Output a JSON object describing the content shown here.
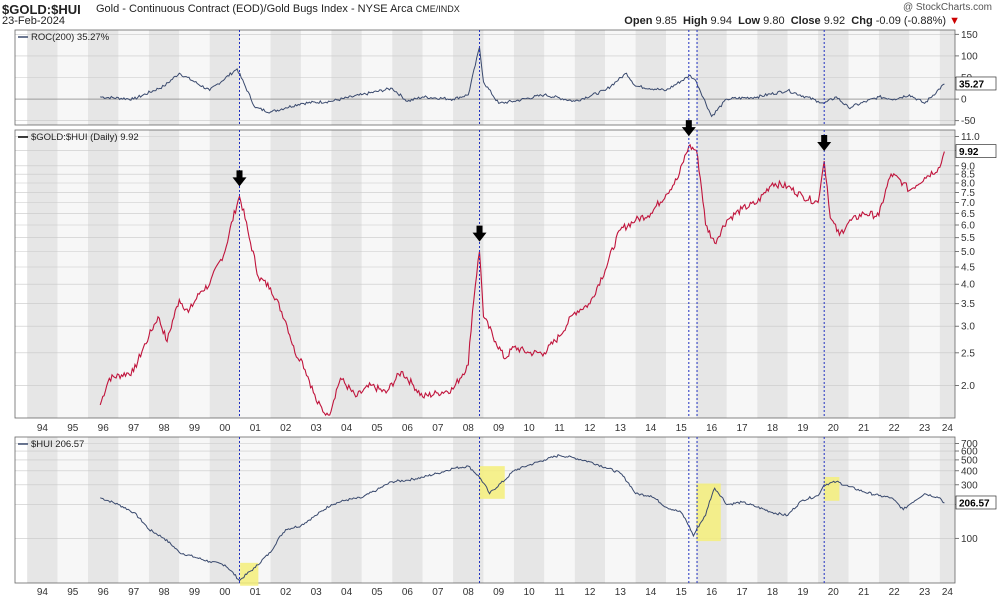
{
  "header": {
    "symbol": "$GOLD:$HUI",
    "description": "Gold - Continuous Contract (EOD)/Gold Bugs Index - NYSE Arca",
    "exchange": "CME/INDX",
    "date": "23-Feb-2024",
    "open_label": "Open",
    "open": "9.85",
    "high_label": "High",
    "high": "9.94",
    "low_label": "Low",
    "low": "9.80",
    "close_label": "Close",
    "close": "9.92",
    "chg_label": "Chg",
    "chg": "-0.09 (-0.88%)",
    "chg_arrow": "▼",
    "brand": "@ StockCharts.com",
    "colors": {
      "ratio": "#c0143c",
      "line": "#3a4a6e",
      "highlight": "#f4ee7a",
      "marker": "#2030c0",
      "down": "#cc0000"
    }
  },
  "chart_data": [
    {
      "type": "line",
      "panel": "roc",
      "legend": "ROC(200) 35.27%",
      "last_value_label": "35.27",
      "yticks": [
        "150",
        "100",
        "50",
        "0",
        "-50"
      ],
      "ylim": [
        -60,
        160
      ],
      "x": [
        1996.4,
        1997.5,
        1998.5,
        1999.0,
        2000.0,
        2000.9,
        2001.5,
        2002.0,
        2002.5,
        2003.0,
        2004.0,
        2005.0,
        2006.0,
        2006.5,
        2007.0,
        2008.0,
        2008.5,
        2008.87,
        2009.0,
        2009.5,
        2010.0,
        2011.0,
        2012.0,
        2013.0,
        2013.7,
        2014.0,
        2015.0,
        2015.8,
        2016.0,
        2016.5,
        2017.0,
        2018.0,
        2019.0,
        2020.0,
        2020.2,
        2020.6,
        2021.0,
        2022.0,
        2022.5,
        2023.0,
        2023.5,
        2024.15
      ],
      "values": [
        5,
        0,
        30,
        60,
        20,
        70,
        -20,
        -30,
        -20,
        -10,
        -5,
        10,
        25,
        -5,
        5,
        0,
        10,
        120,
        40,
        -10,
        -5,
        10,
        -5,
        20,
        60,
        30,
        20,
        55,
        40,
        -40,
        0,
        5,
        20,
        -5,
        -10,
        5,
        -20,
        5,
        0,
        10,
        -10,
        35
      ]
    },
    {
      "type": "line",
      "panel": "ratio",
      "scale": "log",
      "legend": "$GOLD:$HUI (Daily) 9.92",
      "last_value_label": "9.92",
      "yticks": [
        "11.0",
        "10.0",
        "9.0",
        "8.5",
        "8.0",
        "7.5",
        "7.0",
        "6.5",
        "6.0",
        "5.5",
        "5.0",
        "4.5",
        "4.0",
        "3.5",
        "3.0",
        "2.5",
        "2.0"
      ],
      "ylim": [
        1.6,
        11.5
      ],
      "x": [
        1996.4,
        1996.7,
        1997.5,
        1998.0,
        1998.3,
        1998.6,
        1999.0,
        1999.3,
        1999.7,
        2000.0,
        2000.5,
        2000.98,
        2001.3,
        2001.6,
        2002.0,
        2002.5,
        2002.8,
        2003.0,
        2003.5,
        2003.9,
        2004.3,
        2004.8,
        2005.3,
        2005.8,
        2006.3,
        2006.7,
        2007.0,
        2007.5,
        2008.0,
        2008.5,
        2008.87,
        2009.0,
        2009.4,
        2009.7,
        2010.0,
        2010.5,
        2011.0,
        2011.5,
        2012.0,
        2012.5,
        2013.0,
        2013.5,
        2014.0,
        2014.5,
        2015.0,
        2015.4,
        2015.75,
        2016.0,
        2016.3,
        2016.6,
        2017.0,
        2017.5,
        2018.0,
        2018.5,
        2019.0,
        2019.5,
        2020.0,
        2020.2,
        2020.4,
        2020.7,
        2021.0,
        2021.5,
        2022.0,
        2022.4,
        2022.8,
        2023.0,
        2023.5,
        2024.0,
        2024.15
      ],
      "values": [
        1.75,
        2.1,
        2.2,
        2.8,
        3.2,
        2.7,
        3.6,
        3.3,
        3.8,
        4.0,
        5.0,
        7.3,
        5.5,
        4.2,
        3.9,
        3.1,
        2.5,
        2.4,
        1.8,
        1.6,
        2.1,
        1.85,
        2.0,
        1.9,
        2.2,
        2.0,
        1.85,
        1.9,
        1.95,
        2.3,
        5.0,
        3.2,
        2.7,
        2.4,
        2.6,
        2.5,
        2.5,
        2.8,
        3.3,
        3.5,
        4.4,
        5.8,
        6.2,
        6.5,
        7.4,
        8.3,
        10.3,
        10.0,
        6.0,
        5.3,
        6.2,
        6.7,
        7.0,
        8.0,
        7.8,
        7.3,
        7.0,
        9.3,
        6.3,
        5.6,
        6.1,
        6.5,
        6.4,
        8.5,
        8.0,
        7.6,
        8.3,
        8.9,
        9.92
      ],
      "arrows_at": [
        2000.98,
        2008.87,
        2015.75,
        2020.2
      ]
    },
    {
      "type": "line",
      "panel": "hui",
      "scale": "log",
      "legend": "$HUI 206.57",
      "last_value_label": "206.57",
      "yticks": [
        "700",
        "600",
        "500",
        "400",
        "300",
        "200",
        "100"
      ],
      "ylim": [
        40,
        800
      ],
      "x": [
        1996.4,
        1997.0,
        1997.5,
        1998.0,
        1998.5,
        1999.0,
        1999.5,
        2000.0,
        2000.5,
        2000.98,
        2001.5,
        2002.0,
        2002.5,
        2003.0,
        2003.5,
        2004.0,
        2004.5,
        2005.0,
        2005.5,
        2006.0,
        2006.5,
        2007.0,
        2007.5,
        2008.0,
        2008.5,
        2008.87,
        2009.2,
        2009.7,
        2010.0,
        2010.5,
        2011.0,
        2011.5,
        2012.0,
        2012.5,
        2013.0,
        2013.5,
        2014.0,
        2014.5,
        2015.0,
        2015.5,
        2015.9,
        2016.3,
        2016.6,
        2017.0,
        2017.5,
        2018.0,
        2018.5,
        2019.0,
        2019.5,
        2020.0,
        2020.2,
        2020.6,
        2021.0,
        2021.5,
        2022.0,
        2022.4,
        2022.8,
        2023.0,
        2023.5,
        2024.0,
        2024.15
      ],
      "values": [
        230,
        200,
        170,
        120,
        100,
        75,
        68,
        62,
        58,
        42,
        55,
        75,
        120,
        130,
        160,
        200,
        220,
        230,
        270,
        320,
        330,
        350,
        380,
        420,
        440,
        350,
        250,
        330,
        400,
        450,
        500,
        550,
        520,
        480,
        430,
        380,
        250,
        240,
        190,
        170,
        105,
        160,
        280,
        200,
        210,
        190,
        170,
        160,
        220,
        240,
        300,
        320,
        290,
        260,
        240,
        230,
        180,
        200,
        250,
        230,
        206.57
      ],
      "highlights": [
        [
          2001.0,
          2001.6
        ],
        [
          2008.87,
          2009.7
        ],
        [
          2016.0,
          2016.8
        ],
        [
          2020.2,
          2020.7
        ]
      ]
    }
  ],
  "x_axis": {
    "year_labels": [
      "94",
      "95",
      "96",
      "97",
      "98",
      "99",
      "00",
      "01",
      "02",
      "03",
      "04",
      "05",
      "06",
      "07",
      "08",
      "09",
      "10",
      "11",
      "12",
      "13",
      "14",
      "15",
      "16",
      "17",
      "18",
      "19",
      "20",
      "21",
      "22",
      "23",
      "24"
    ],
    "start_year": 1994,
    "range": [
      1993.6,
      2024.5
    ],
    "marker_years": [
      2000.98,
      2008.87,
      2015.75,
      2016.02,
      2020.2
    ]
  }
}
